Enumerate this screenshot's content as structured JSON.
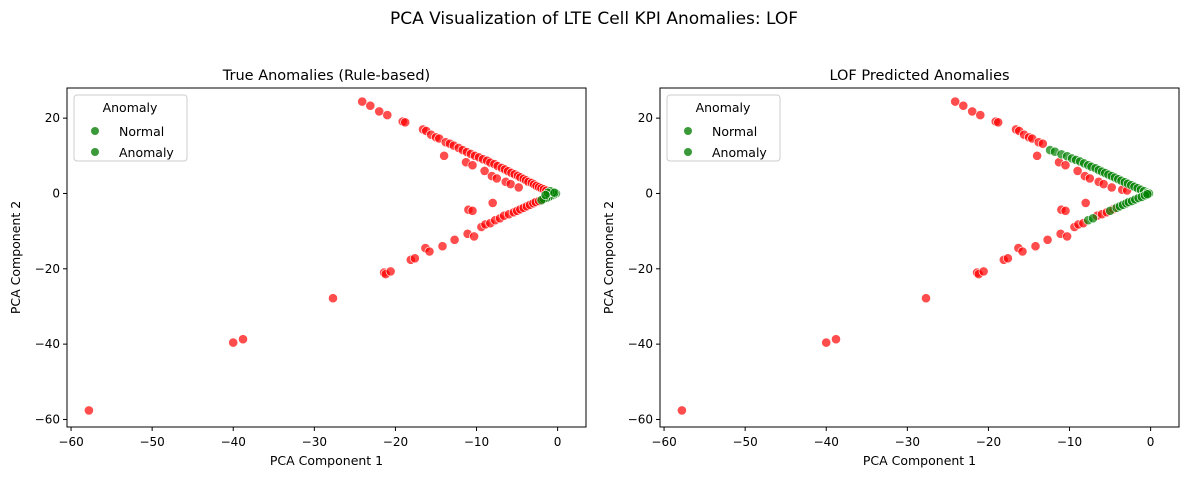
{
  "suptitle": "PCA Visualization of LTE Cell KPI Anomalies: LOF",
  "colors": {
    "normal": "#008000",
    "anomaly": "#ff0000",
    "axes": "#000000"
  },
  "chart_data": [
    {
      "type": "scatter",
      "title": "True Anomalies (Rule-based)",
      "xlabel": "PCA Component 1",
      "ylabel": "PCA Component 2",
      "xlim": [
        -60.5,
        3.5
      ],
      "ylim": [
        -62,
        28
      ],
      "xticks": [
        -60,
        -50,
        -40,
        -30,
        -20,
        -10,
        0
      ],
      "yticks": [
        -60,
        -40,
        -20,
        0,
        20
      ],
      "grid": false,
      "legend": {
        "title": "Anomaly",
        "placement": "top-left",
        "entries": [
          "Normal",
          "Anomaly"
        ],
        "marker_color": "#3a9a3a"
      },
      "series": [
        {
          "color": "#ff0000",
          "points": [
            [
              -57.8,
              -57.6
            ],
            [
              -40.0,
              -39.6
            ],
            [
              -38.8,
              -38.7
            ],
            [
              -27.7,
              -27.8
            ],
            [
              -21.4,
              -21.0
            ],
            [
              -21.2,
              -21.4
            ],
            [
              -20.6,
              -20.7
            ],
            [
              -18.1,
              -17.6
            ],
            [
              -17.6,
              -17.2
            ],
            [
              -16.3,
              -14.5
            ],
            [
              -15.8,
              -15.4
            ],
            [
              -14.2,
              -14.0
            ],
            [
              -12.7,
              -12.3
            ],
            [
              -11.1,
              -10.7
            ],
            [
              -10.3,
              -11.4
            ],
            [
              -9.4,
              -8.9
            ],
            [
              -8.9,
              -8.2
            ],
            [
              -8.3,
              -7.9
            ],
            [
              -7.7,
              -7.1
            ],
            [
              -7.1,
              -6.6
            ],
            [
              -6.6,
              -5.9
            ],
            [
              -6.0,
              -5.5
            ],
            [
              -5.4,
              -5.0
            ],
            [
              -5.0,
              -4.6
            ],
            [
              -4.6,
              -4.2
            ],
            [
              -4.2,
              -3.8
            ],
            [
              -3.8,
              -3.4
            ],
            [
              -3.4,
              -3.0
            ],
            [
              -3.0,
              -2.6
            ],
            [
              -2.7,
              -2.3
            ],
            [
              -2.3,
              -2.0
            ],
            [
              -1.9,
              -1.6
            ],
            [
              -11.0,
              -4.3
            ],
            [
              -10.5,
              -4.6
            ],
            [
              -8.0,
              -2.5
            ],
            [
              -24.1,
              24.4
            ],
            [
              -23.1,
              23.3
            ],
            [
              -22.0,
              21.8
            ],
            [
              -21.0,
              20.8
            ],
            [
              -19.1,
              19.1
            ],
            [
              -18.8,
              18.9
            ],
            [
              -16.6,
              17.0
            ],
            [
              -16.2,
              16.6
            ],
            [
              -15.6,
              15.6
            ],
            [
              -15.0,
              14.9
            ],
            [
              -14.6,
              14.6
            ],
            [
              -13.8,
              13.6
            ],
            [
              -13.3,
              13.2
            ],
            [
              -12.8,
              12.7
            ],
            [
              -12.2,
              12.1
            ],
            [
              -11.7,
              11.5
            ],
            [
              -11.2,
              11.0
            ],
            [
              -10.7,
              10.5
            ],
            [
              -10.2,
              10.0
            ],
            [
              -9.7,
              9.6
            ],
            [
              -9.2,
              9.1
            ],
            [
              -8.7,
              8.7
            ],
            [
              -8.3,
              8.2
            ],
            [
              -7.8,
              7.8
            ],
            [
              -7.4,
              7.3
            ],
            [
              -6.9,
              6.8
            ],
            [
              -6.5,
              6.4
            ],
            [
              -6.1,
              5.9
            ],
            [
              -5.7,
              5.5
            ],
            [
              -5.3,
              5.1
            ],
            [
              -4.9,
              4.7
            ],
            [
              -4.6,
              4.3
            ],
            [
              -4.2,
              3.9
            ],
            [
              -3.9,
              3.5
            ],
            [
              -3.6,
              3.1
            ],
            [
              -3.2,
              2.8
            ],
            [
              -2.9,
              2.4
            ],
            [
              -2.6,
              2.0
            ],
            [
              -2.3,
              1.7
            ],
            [
              -2.0,
              1.4
            ],
            [
              -1.7,
              1.1
            ],
            [
              -1.4,
              0.8
            ],
            [
              -14.0,
              10.0
            ],
            [
              -11.3,
              8.3
            ],
            [
              -10.5,
              7.5
            ],
            [
              -9.0,
              6.0
            ],
            [
              -8.1,
              4.6
            ],
            [
              -7.5,
              4.0
            ],
            [
              -6.4,
              3.1
            ],
            [
              -5.8,
              2.5
            ],
            [
              -4.8,
              1.6
            ]
          ]
        },
        {
          "color": "#008000",
          "points": [
            [
              -0.2,
              0.0
            ],
            [
              -0.5,
              -0.3
            ],
            [
              -0.8,
              -0.6
            ],
            [
              -1.1,
              -0.9
            ],
            [
              -1.4,
              -1.2
            ],
            [
              -1.7,
              -1.4
            ],
            [
              -2.0,
              -1.8
            ],
            [
              -0.6,
              0.3
            ],
            [
              -0.9,
              0.6
            ],
            [
              -1.2,
              0.2
            ],
            [
              -0.4,
              0.2
            ],
            [
              -1.5,
              -0.4
            ]
          ]
        }
      ]
    },
    {
      "type": "scatter",
      "title": "LOF Predicted Anomalies",
      "xlabel": "PCA Component 1",
      "ylabel": "PCA Component 2",
      "xlim": [
        -60.5,
        3.5
      ],
      "ylim": [
        -62,
        28
      ],
      "xticks": [
        -60,
        -50,
        -40,
        -30,
        -20,
        -10,
        0
      ],
      "yticks": [
        -60,
        -40,
        -20,
        0,
        20
      ],
      "grid": false,
      "legend": {
        "title": "Anomaly",
        "placement": "top-left",
        "entries": [
          "Normal",
          "Anomaly"
        ],
        "marker_color": "#3a9a3a"
      },
      "series": [
        {
          "color": "#ff0000",
          "points": [
            [
              -57.8,
              -57.6
            ],
            [
              -40.0,
              -39.6
            ],
            [
              -38.8,
              -38.7
            ],
            [
              -27.7,
              -27.8
            ],
            [
              -21.4,
              -21.0
            ],
            [
              -21.2,
              -21.4
            ],
            [
              -20.6,
              -20.7
            ],
            [
              -18.1,
              -17.6
            ],
            [
              -17.6,
              -17.2
            ],
            [
              -16.3,
              -14.5
            ],
            [
              -15.8,
              -15.4
            ],
            [
              -14.2,
              -14.0
            ],
            [
              -12.7,
              -12.3
            ],
            [
              -11.1,
              -10.7
            ],
            [
              -10.3,
              -11.4
            ],
            [
              -9.4,
              -8.9
            ],
            [
              -8.9,
              -8.2
            ],
            [
              -8.3,
              -7.9
            ],
            [
              -6.6,
              -5.9
            ],
            [
              -6.0,
              -5.5
            ],
            [
              -5.4,
              -5.0
            ],
            [
              -4.6,
              -4.2
            ],
            [
              -11.0,
              -4.3
            ],
            [
              -10.5,
              -4.6
            ],
            [
              -8.0,
              -2.5
            ],
            [
              -24.1,
              24.4
            ],
            [
              -23.1,
              23.3
            ],
            [
              -22.0,
              21.8
            ],
            [
              -21.0,
              20.8
            ],
            [
              -19.1,
              19.1
            ],
            [
              -18.8,
              18.9
            ],
            [
              -16.6,
              17.0
            ],
            [
              -16.2,
              16.6
            ],
            [
              -15.6,
              15.6
            ],
            [
              -15.0,
              14.9
            ],
            [
              -14.6,
              14.6
            ],
            [
              -13.8,
              13.6
            ],
            [
              -13.3,
              13.2
            ],
            [
              -14.0,
              10.0
            ],
            [
              -11.3,
              8.3
            ],
            [
              -10.5,
              7.5
            ],
            [
              -9.0,
              6.0
            ],
            [
              -8.1,
              4.6
            ],
            [
              -7.5,
              4.0
            ],
            [
              -6.4,
              3.1
            ],
            [
              -5.8,
              2.5
            ],
            [
              -4.8,
              1.6
            ],
            [
              -3.5,
              1.0
            ],
            [
              -2.9,
              0.8
            ]
          ]
        },
        {
          "color": "#008000",
          "points": [
            [
              -12.4,
              11.5
            ],
            [
              -11.8,
              11.1
            ],
            [
              -11.0,
              10.4
            ],
            [
              -10.3,
              9.9
            ],
            [
              -9.7,
              9.3
            ],
            [
              -9.2,
              8.9
            ],
            [
              -8.7,
              8.5
            ],
            [
              -8.2,
              8.0
            ],
            [
              -7.7,
              7.5
            ],
            [
              -7.3,
              7.1
            ],
            [
              -6.8,
              6.7
            ],
            [
              -6.4,
              6.2
            ],
            [
              -6.0,
              5.8
            ],
            [
              -5.6,
              5.4
            ],
            [
              -5.2,
              5.0
            ],
            [
              -4.8,
              4.6
            ],
            [
              -4.4,
              4.2
            ],
            [
              -4.0,
              3.8
            ],
            [
              -3.6,
              3.4
            ],
            [
              -3.2,
              3.0
            ],
            [
              -2.8,
              2.6
            ],
            [
              -2.4,
              2.2
            ],
            [
              -2.0,
              1.8
            ],
            [
              -1.6,
              1.4
            ],
            [
              -1.2,
              1.0
            ],
            [
              -0.8,
              0.6
            ],
            [
              -0.4,
              0.2
            ],
            [
              -0.2,
              0.0
            ],
            [
              -7.7,
              -7.1
            ],
            [
              -7.1,
              -6.6
            ],
            [
              -5.0,
              -4.6
            ],
            [
              -4.2,
              -3.8
            ],
            [
              -3.8,
              -3.4
            ],
            [
              -3.4,
              -3.0
            ],
            [
              -3.0,
              -2.6
            ],
            [
              -2.7,
              -2.3
            ],
            [
              -2.3,
              -2.0
            ],
            [
              -1.9,
              -1.6
            ],
            [
              -1.5,
              -1.2
            ],
            [
              -1.1,
              -0.9
            ],
            [
              -0.7,
              -0.5
            ],
            [
              -0.4,
              -0.2
            ]
          ]
        }
      ]
    }
  ]
}
